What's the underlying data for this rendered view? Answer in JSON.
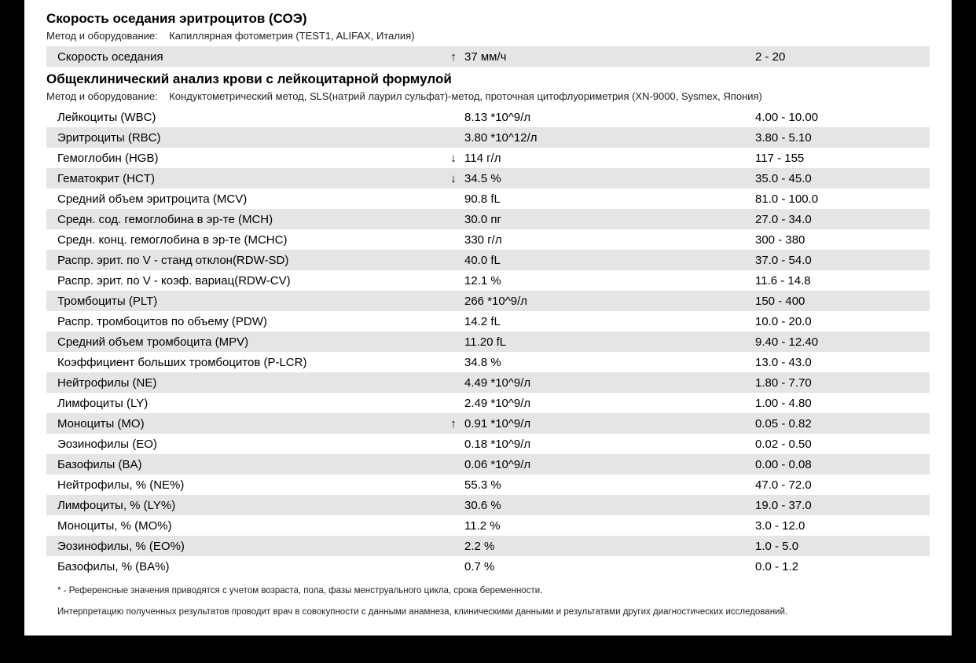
{
  "sections": [
    {
      "title": "Скорость оседания эритроцитов (СОЭ)",
      "method_label": "Метод и оборудование:",
      "method_value": "Капиллярная фотометрия (TEST1, ALIFAX, Италия)",
      "rows": [
        {
          "name": "Скорость оседания",
          "arrow": "↑",
          "value": "37 мм/ч",
          "ref": "2 - 20"
        }
      ]
    },
    {
      "title": "Общеклинический анализ крови с лейкоцитарной формулой",
      "method_label": "Метод и оборудование:",
      "method_value": "Кондуктометрический метод, SLS(натрий лаурил сульфат)-метод, проточная цитофлуориметрия (XN-9000, Sysmex, Япония)",
      "rows": [
        {
          "name": "Лейкоциты (WBC)",
          "arrow": "",
          "value": "8.13 *10^9/л",
          "ref": "4.00 - 10.00"
        },
        {
          "name": "Эритроциты (RBC)",
          "arrow": "",
          "value": "3.80 *10^12/л",
          "ref": "3.80 - 5.10"
        },
        {
          "name": "Гемоглобин (HGB)",
          "arrow": "↓",
          "value": "114 г/л",
          "ref": "117 - 155"
        },
        {
          "name": "Гематокрит (HCT)",
          "arrow": "↓",
          "value": "34.5 %",
          "ref": "35.0 - 45.0"
        },
        {
          "name": "Средний объем эритроцита (MCV)",
          "arrow": "",
          "value": "90.8 fL",
          "ref": "81.0 - 100.0"
        },
        {
          "name": "Средн. сод. гемоглобина в эр-те (MCH)",
          "arrow": "",
          "value": "30.0 пг",
          "ref": "27.0 - 34.0"
        },
        {
          "name": "Средн. конц. гемоглобина в эр-те (MCHC)",
          "arrow": "",
          "value": "330 г/л",
          "ref": "300 - 380"
        },
        {
          "name": "Распр. эрит. по V - станд отклон(RDW-SD)",
          "arrow": "",
          "value": "40.0 fL",
          "ref": "37.0 - 54.0"
        },
        {
          "name": "Распр. эрит. по V - коэф. вариац(RDW-CV)",
          "arrow": "",
          "value": "12.1 %",
          "ref": "11.6 - 14.8"
        },
        {
          "name": "Тромбоциты (PLT)",
          "arrow": "",
          "value": "266 *10^9/л",
          "ref": "150 - 400"
        },
        {
          "name": "Распр. тромбоцитов по объему (PDW)",
          "arrow": "",
          "value": "14.2 fL",
          "ref": "10.0 - 20.0"
        },
        {
          "name": "Средний объем тромбоцита (MPV)",
          "arrow": "",
          "value": "11.20 fL",
          "ref": "9.40 - 12.40"
        },
        {
          "name": "Коэффициент больших тромбоцитов (P-LCR)",
          "arrow": "",
          "value": "34.8 %",
          "ref": "13.0 - 43.0"
        },
        {
          "name": "Нейтрофилы (NE)",
          "arrow": "",
          "value": "4.49 *10^9/л",
          "ref": "1.80 - 7.70"
        },
        {
          "name": "Лимфоциты (LY)",
          "arrow": "",
          "value": "2.49 *10^9/л",
          "ref": "1.00 - 4.80"
        },
        {
          "name": "Моноциты (MO)",
          "arrow": "↑",
          "value": "0.91 *10^9/л",
          "ref": "0.05 - 0.82"
        },
        {
          "name": "Эозинофилы (EO)",
          "arrow": "",
          "value": "0.18 *10^9/л",
          "ref": "0.02 - 0.50"
        },
        {
          "name": "Базофилы (BA)",
          "arrow": "",
          "value": "0.06 *10^9/л",
          "ref": "0.00 - 0.08"
        },
        {
          "name": "Нейтрофилы, % (NE%)",
          "arrow": "",
          "value": "55.3 %",
          "ref": "47.0 - 72.0"
        },
        {
          "name": "Лимфоциты, % (LY%)",
          "arrow": "",
          "value": "30.6 %",
          "ref": "19.0 - 37.0"
        },
        {
          "name": "Моноциты, % (MO%)",
          "arrow": "",
          "value": "11.2 %",
          "ref": "3.0 - 12.0"
        },
        {
          "name": "Эозинофилы, % (EO%)",
          "arrow": "",
          "value": "2.2 %",
          "ref": "1.0 - 5.0"
        },
        {
          "name": "Базофилы, % (BA%)",
          "arrow": "",
          "value": "0.7 %",
          "ref": "0.0 - 1.2"
        }
      ]
    }
  ],
  "footnotes": [
    "* - Референсные значения приводятся с учетом возраста, пола, фазы менструального цикла, срока беременности.",
    "Интерпретацию полученных результатов проводит врач в совокупности с данными анамнеза, клиническими данными и результатами других диагностических исследований."
  ],
  "colors": {
    "page_bg": "#ffffff",
    "outer_bg": "#000000",
    "stripe_bg": "#e5e5e5",
    "text": "#000000"
  }
}
